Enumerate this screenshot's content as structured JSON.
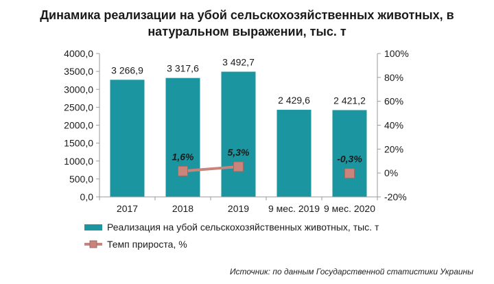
{
  "title_line1": "Динамика реализации на убой сельскохозяйственных животных, в",
  "title_line2": "натуральном выражении, тыс. т",
  "source": "Источник: по данным Государственной статистики Украины",
  "chart_data": {
    "type": "bar",
    "categories": [
      "2017",
      "2018",
      "2019",
      "9 мес. 2019",
      "9 мес. 2020"
    ],
    "series": [
      {
        "name": "Реализация на убой сельскохозяйственных животных, тыс. т",
        "type": "bar",
        "axis": "left",
        "color": "#1b96a0",
        "values": [
          3266.9,
          3317.6,
          3492.7,
          2429.6,
          2421.2
        ],
        "labels": [
          "3 266,9",
          "3 317,6",
          "3 492,7",
          "2 429,6",
          "2 421,2"
        ]
      },
      {
        "name": "Темп прироста, %",
        "type": "line",
        "axis": "right",
        "color": "#c9857c",
        "values": [
          null,
          1.6,
          5.3,
          null,
          -0.3
        ],
        "labels": [
          null,
          "1,6%",
          "5,3%",
          null,
          "-0,3%"
        ]
      }
    ],
    "y_left": {
      "min": 0,
      "max": 4000,
      "ticks": [
        "0,0",
        "500,0",
        "1000,0",
        "1500,0",
        "2000,0",
        "2500,0",
        "3000,0",
        "3500,0",
        "4000,0"
      ]
    },
    "y_right": {
      "min": -20,
      "max": 100,
      "ticks": [
        "-20%",
        "0%",
        "20%",
        "40%",
        "60%",
        "80%",
        "100%"
      ]
    },
    "grid": false,
    "legend_position": "bottom"
  }
}
